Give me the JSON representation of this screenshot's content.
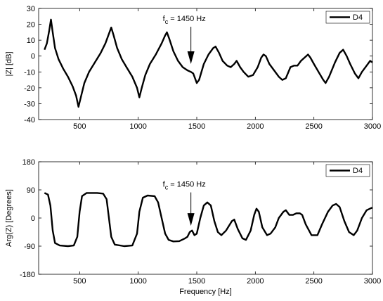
{
  "chart_data": [
    {
      "type": "line",
      "ylabel": "|Z| [dB]",
      "xlim": [
        150,
        3000
      ],
      "ylim": [
        -40,
        30
      ],
      "xticks": [
        500,
        1000,
        1500,
        2000,
        2500,
        3000
      ],
      "yticks": [
        -40,
        -30,
        -20,
        -10,
        0,
        10,
        20,
        30
      ],
      "legend": "upper right",
      "annotation": {
        "base": "f",
        "sub": "c",
        "text": " = 1450 Hz",
        "xy": [
          1450,
          -5
        ],
        "xytext": [
          1210,
          22
        ]
      },
      "series": [
        {
          "name": "D4",
          "color": "#000000",
          "x": [
            200,
            220,
            240,
            255,
            270,
            290,
            320,
            360,
            400,
            440,
            470,
            490,
            510,
            540,
            580,
            630,
            680,
            720,
            750,
            770,
            790,
            820,
            860,
            900,
            950,
            990,
            1010,
            1030,
            1060,
            1100,
            1150,
            1200,
            1230,
            1245,
            1265,
            1300,
            1340,
            1380,
            1420,
            1450,
            1470,
            1500,
            1520,
            1560,
            1600,
            1640,
            1660,
            1690,
            1720,
            1760,
            1790,
            1820,
            1840,
            1870,
            1900,
            1940,
            1980,
            2020,
            2050,
            2070,
            2090,
            2120,
            2160,
            2200,
            2230,
            2260,
            2300,
            2330,
            2360,
            2390,
            2420,
            2450,
            2470,
            2500,
            2540,
            2580,
            2600,
            2630,
            2680,
            2720,
            2750,
            2780,
            2810,
            2850,
            2880,
            2910,
            2950,
            2980,
            3000
          ],
          "values": [
            4,
            8,
            16,
            23,
            15,
            5,
            -2,
            -8,
            -13,
            -19,
            -25,
            -32,
            -26,
            -17,
            -10,
            -4,
            2,
            8,
            14,
            18,
            13,
            5,
            -2,
            -7,
            -13,
            -20,
            -26,
            -20,
            -12,
            -5,
            1,
            8,
            13,
            15,
            11,
            3,
            -3,
            -7,
            -9,
            -10,
            -11,
            -17,
            -15,
            -5,
            1,
            5,
            6,
            2,
            -3,
            -6,
            -7,
            -5,
            -3,
            -7,
            -10,
            -13,
            -12,
            -7,
            -1,
            1,
            0,
            -5,
            -9,
            -13,
            -15,
            -14,
            -7,
            -6,
            -6,
            -3,
            -1,
            1,
            -1,
            -5,
            -10,
            -15,
            -17,
            -13,
            -4,
            2,
            4,
            0,
            -5,
            -11,
            -14,
            -10,
            -6,
            -3,
            -4
          ]
        }
      ]
    },
    {
      "type": "line",
      "ylabel": "Arg(Z) [Degrees]",
      "xlabel": "Frequency [Hz]",
      "xlim": [
        150,
        3000
      ],
      "ylim": [
        -180,
        180
      ],
      "xticks": [
        500,
        1000,
        1500,
        2000,
        2500,
        3000
      ],
      "yticks": [
        -180,
        -90,
        0,
        90,
        180
      ],
      "legend": "upper right",
      "annotation": {
        "base": "f",
        "sub": "c",
        "text": " = 1450 Hz",
        "xy": [
          1450,
          -25
        ],
        "xytext": [
          1210,
          100
        ]
      },
      "series": [
        {
          "name": "D4",
          "color": "#000000",
          "x": [
            200,
            230,
            250,
            270,
            290,
            330,
            400,
            450,
            480,
            500,
            520,
            560,
            650,
            700,
            730,
            750,
            770,
            800,
            880,
            950,
            990,
            1010,
            1040,
            1080,
            1140,
            1170,
            1200,
            1230,
            1260,
            1300,
            1350,
            1400,
            1420,
            1440,
            1460,
            1480,
            1500,
            1530,
            1560,
            1590,
            1620,
            1650,
            1680,
            1710,
            1750,
            1800,
            1820,
            1850,
            1890,
            1920,
            1960,
            1990,
            2010,
            2030,
            2060,
            2100,
            2130,
            2170,
            2200,
            2240,
            2260,
            2290,
            2320,
            2350,
            2380,
            2400,
            2430,
            2480,
            2530,
            2570,
            2620,
            2660,
            2690,
            2720,
            2760,
            2800,
            2840,
            2870,
            2910,
            2950,
            2990,
            3000
          ],
          "values": [
            80,
            75,
            40,
            -40,
            -80,
            -88,
            -90,
            -88,
            -60,
            20,
            70,
            80,
            80,
            78,
            60,
            0,
            -60,
            -85,
            -90,
            -88,
            -50,
            20,
            65,
            72,
            70,
            50,
            0,
            -50,
            -70,
            -75,
            -74,
            -65,
            -60,
            -45,
            -40,
            -55,
            -50,
            0,
            40,
            50,
            40,
            -10,
            -45,
            -55,
            -40,
            -10,
            -5,
            -35,
            -65,
            -70,
            -40,
            10,
            30,
            20,
            -30,
            -55,
            -50,
            -30,
            0,
            20,
            25,
            10,
            10,
            15,
            15,
            10,
            -20,
            -55,
            -55,
            -20,
            20,
            40,
            45,
            35,
            -10,
            -45,
            -55,
            -40,
            0,
            25,
            32,
            33
          ]
        }
      ]
    }
  ]
}
